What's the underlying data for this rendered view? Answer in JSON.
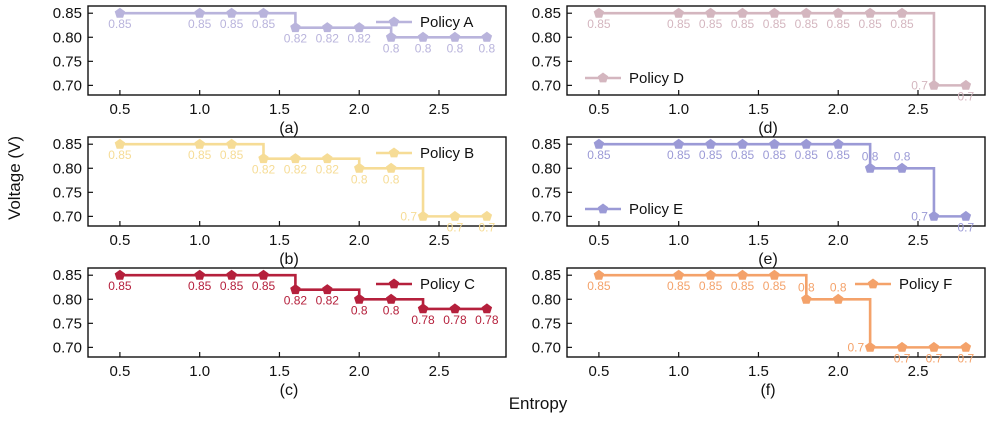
{
  "figure": {
    "ylabel": "Voltage (V)",
    "xlabel": "Entropy"
  },
  "chart_data": [
    {
      "type": "line",
      "step": "post",
      "panel": "(a)",
      "series": [
        {
          "name": "Policy A",
          "color": "#b9b4dc",
          "x": [
            0.5,
            1.0,
            1.2,
            1.4,
            1.6,
            1.8,
            2.0,
            2.2,
            2.4,
            2.6,
            2.8
          ],
          "y": [
            0.85,
            0.85,
            0.85,
            0.85,
            0.82,
            0.82,
            0.82,
            0.8,
            0.8,
            0.8,
            0.8
          ],
          "labels": [
            "0.85",
            "0.85",
            "0.85",
            "0.85",
            "0.82",
            "0.82",
            "0.82",
            "0.8",
            "0.8",
            "0.8",
            "0.8"
          ]
        }
      ],
      "xticks": [
        "0.5",
        "1.0",
        "1.5",
        "2.0",
        "2.5"
      ],
      "yticks": [
        "0.70",
        "0.75",
        "0.80",
        "0.85"
      ],
      "xlim": [
        0.3,
        2.92
      ],
      "ylim": [
        0.68,
        0.865
      ],
      "legend": "top-right",
      "marker": "pentagon"
    },
    {
      "type": "line",
      "step": "post",
      "panel": "(b)",
      "series": [
        {
          "name": "Policy B",
          "color": "#f6dc96",
          "x": [
            0.5,
            1.0,
            1.2,
            1.4,
            1.6,
            1.8,
            2.0,
            2.2,
            2.4,
            2.6,
            2.8
          ],
          "y": [
            0.85,
            0.85,
            0.85,
            0.82,
            0.82,
            0.82,
            0.8,
            0.8,
            0.7,
            0.7,
            0.7
          ],
          "labels": [
            "0.85",
            "0.85",
            "0.85",
            "0.82",
            "0.82",
            "0.82",
            "0.8",
            "0.8",
            "0.7",
            "0.7",
            "0.7"
          ]
        }
      ],
      "xticks": [
        "0.5",
        "1.0",
        "1.5",
        "2.0",
        "2.5"
      ],
      "yticks": [
        "0.70",
        "0.75",
        "0.80",
        "0.85"
      ],
      "xlim": [
        0.3,
        2.92
      ],
      "ylim": [
        0.68,
        0.865
      ],
      "legend": "top-right",
      "marker": "pentagon"
    },
    {
      "type": "line",
      "step": "post",
      "panel": "(c)",
      "series": [
        {
          "name": "Policy C",
          "color": "#b5203c",
          "x": [
            0.5,
            1.0,
            1.2,
            1.4,
            1.6,
            1.8,
            2.0,
            2.2,
            2.4,
            2.6,
            2.8
          ],
          "y": [
            0.85,
            0.85,
            0.85,
            0.85,
            0.82,
            0.82,
            0.8,
            0.8,
            0.78,
            0.78,
            0.78
          ],
          "labels": [
            "0.85",
            "0.85",
            "0.85",
            "0.85",
            "0.82",
            "0.82",
            "0.8",
            "0.8",
            "0.78",
            "0.78",
            "0.78"
          ]
        }
      ],
      "xticks": [
        "0.5",
        "1.0",
        "1.5",
        "2.0",
        "2.5"
      ],
      "yticks": [
        "0.70",
        "0.75",
        "0.80",
        "0.85"
      ],
      "xlim": [
        0.3,
        2.92
      ],
      "ylim": [
        0.68,
        0.865
      ],
      "legend": "top-right",
      "marker": "pentagon"
    },
    {
      "type": "line",
      "step": "post",
      "panel": "(d)",
      "series": [
        {
          "name": "Policy D",
          "color": "#d4b6bf",
          "x": [
            0.5,
            1.0,
            1.2,
            1.4,
            1.6,
            1.8,
            2.0,
            2.2,
            2.4,
            2.6,
            2.8
          ],
          "y": [
            0.85,
            0.85,
            0.85,
            0.85,
            0.85,
            0.85,
            0.85,
            0.85,
            0.85,
            0.7,
            0.7
          ],
          "labels": [
            "0.85",
            "0.85",
            "0.85",
            "0.85",
            "0.85",
            "0.85",
            "0.85",
            "0.85",
            "0.85",
            "0.7",
            "0.7"
          ]
        }
      ],
      "xticks": [
        "0.5",
        "1.0",
        "1.5",
        "2.0",
        "2.5"
      ],
      "yticks": [
        "0.70",
        "0.75",
        "0.80",
        "0.85"
      ],
      "xlim": [
        0.3,
        2.92
      ],
      "ylim": [
        0.68,
        0.865
      ],
      "legend": "bottom-left",
      "marker": "pentagon"
    },
    {
      "type": "line",
      "step": "post",
      "panel": "(e)",
      "series": [
        {
          "name": "Policy E",
          "color": "#9b9ad6",
          "x": [
            0.5,
            1.0,
            1.2,
            1.4,
            1.6,
            1.8,
            2.0,
            2.2,
            2.4,
            2.6,
            2.8
          ],
          "y": [
            0.85,
            0.85,
            0.85,
            0.85,
            0.85,
            0.85,
            0.85,
            0.8,
            0.8,
            0.7,
            0.7
          ],
          "labels": [
            "0.85",
            "0.85",
            "0.85",
            "0.85",
            "0.85",
            "0.85",
            "0.85",
            "0.8",
            "0.8",
            "0.7",
            "0.7"
          ]
        }
      ],
      "xticks": [
        "0.5",
        "1.0",
        "1.5",
        "2.0",
        "2.5"
      ],
      "yticks": [
        "0.70",
        "0.75",
        "0.80",
        "0.85"
      ],
      "xlim": [
        0.3,
        2.92
      ],
      "ylim": [
        0.68,
        0.865
      ],
      "legend": "bottom-left",
      "marker": "pentagon"
    },
    {
      "type": "line",
      "step": "post",
      "panel": "(f)",
      "series": [
        {
          "name": "Policy F",
          "color": "#f4a26a",
          "x": [
            0.5,
            1.0,
            1.2,
            1.4,
            1.6,
            1.8,
            2.0,
            2.2,
            2.4,
            2.6,
            2.8
          ],
          "y": [
            0.85,
            0.85,
            0.85,
            0.85,
            0.85,
            0.8,
            0.8,
            0.7,
            0.7,
            0.7,
            0.7
          ],
          "labels": [
            "0.85",
            "0.85",
            "0.85",
            "0.85",
            "0.85",
            "0.8",
            "0.8",
            "0.7",
            "0.7",
            "0.7",
            "0.7"
          ]
        }
      ],
      "xticks": [
        "0.5",
        "1.0",
        "1.5",
        "2.0",
        "2.5"
      ],
      "yticks": [
        "0.70",
        "0.75",
        "0.80",
        "0.85"
      ],
      "xlim": [
        0.3,
        2.92
      ],
      "ylim": [
        0.68,
        0.865
      ],
      "legend": "top-right",
      "marker": "pentagon"
    }
  ]
}
